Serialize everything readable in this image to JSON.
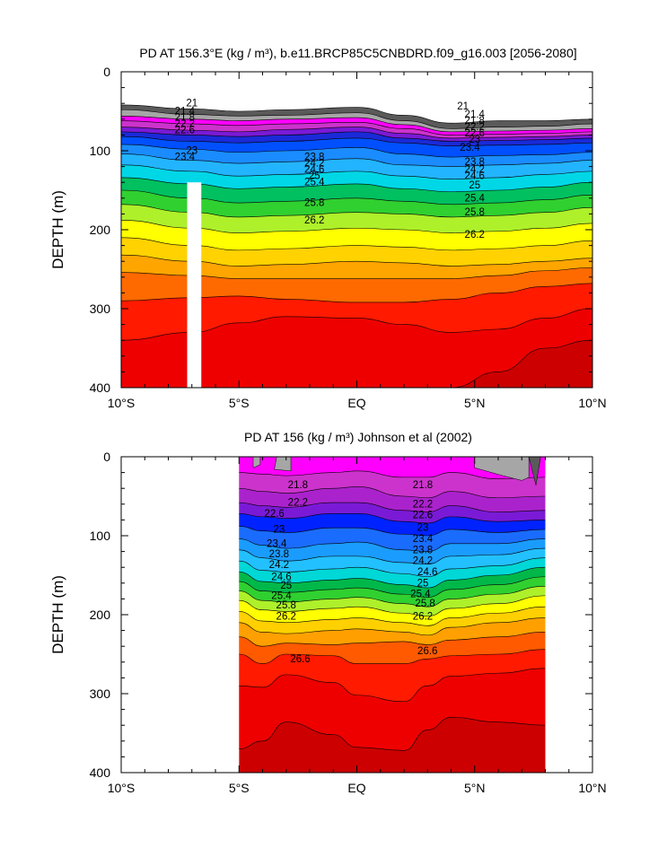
{
  "chart_data": [
    {
      "type": "contour",
      "title": "PD AT 156.3°E (kg / m³), b.e11.BRCP85C5CNBDRD.f09_g16.003 [2056-2080]",
      "ylabel": "DEPTH (m)",
      "xlabel": "",
      "x_range": [
        -10,
        10
      ],
      "y_range": [
        0,
        400
      ],
      "y_inverted": true,
      "x_ticks": [
        {
          "value": -10,
          "label": "10°S"
        },
        {
          "value": -5,
          "label": "5°S"
        },
        {
          "value": 0,
          "label": "EQ"
        },
        {
          "value": 5,
          "label": "5°N"
        },
        {
          "value": 10,
          "label": "10°N"
        }
      ],
      "y_ticks": [
        {
          "value": 0,
          "label": "0"
        },
        {
          "value": 100,
          "label": "100"
        },
        {
          "value": 200,
          "label": "200"
        },
        {
          "value": 300,
          "label": "300"
        },
        {
          "value": 400,
          "label": "400"
        }
      ],
      "data_extent_x": [
        -10,
        10
      ],
      "contour_labels": [
        "21",
        "21.4",
        "21.8",
        "22.2",
        "22.6",
        "23",
        "23.4",
        "23.8",
        "24.2",
        "24.6",
        "25",
        "25.4",
        "25.8",
        "26.2"
      ],
      "profile_x": [
        -10,
        -7,
        -5,
        -3,
        0,
        2,
        4,
        6,
        8,
        10
      ],
      "isopycnals": [
        {
          "level": 20.8,
          "depth": [
            42,
            47,
            50,
            48,
            45,
            55,
            65,
            62,
            62,
            60
          ],
          "color": "#5a5a5a"
        },
        {
          "level": 21.0,
          "depth": [
            48,
            54,
            56,
            55,
            52,
            62,
            72,
            70,
            69,
            66
          ],
          "color": "#a6a6a6"
        },
        {
          "level": 21.4,
          "depth": [
            56,
            60,
            62,
            60,
            58,
            67,
            76,
            75,
            74,
            72
          ],
          "color": "#ff00ff"
        },
        {
          "level": 21.8,
          "depth": [
            62,
            66,
            68,
            66,
            64,
            72,
            80,
            79,
            78,
            76
          ],
          "color": "#cc33cc"
        },
        {
          "level": 22.2,
          "depth": [
            70,
            74,
            76,
            73,
            70,
            78,
            84,
            83,
            82,
            80
          ],
          "color": "#7a1ad6"
        },
        {
          "level": 22.6,
          "depth": [
            76,
            80,
            82,
            80,
            76,
            84,
            88,
            87,
            86,
            84
          ],
          "color": "#1a2ad8"
        },
        {
          "level": 23.0,
          "depth": [
            82,
            88,
            90,
            88,
            84,
            90,
            94,
            93,
            92,
            90
          ],
          "color": "#0050ff"
        },
        {
          "level": 23.4,
          "depth": [
            92,
            98,
            102,
            100,
            96,
            104,
            108,
            106,
            105,
            102
          ],
          "color": "#1a8cff"
        },
        {
          "level": 23.8,
          "depth": [
            104,
            112,
            116,
            114,
            110,
            118,
            120,
            118,
            116,
            112
          ],
          "color": "#23b4ff"
        },
        {
          "level": 24.2,
          "depth": [
            118,
            126,
            132,
            130,
            126,
            132,
            136,
            134,
            130,
            126
          ],
          "color": "#00d7e6"
        },
        {
          "level": 24.6,
          "depth": [
            134,
            142,
            148,
            146,
            142,
            148,
            152,
            150,
            146,
            140
          ],
          "color": "#00c060"
        },
        {
          "level": 25.0,
          "depth": [
            150,
            160,
            166,
            164,
            160,
            164,
            168,
            166,
            162,
            156
          ],
          "color": "#30d030"
        },
        {
          "level": 25.4,
          "depth": [
            168,
            178,
            184,
            182,
            178,
            180,
            184,
            182,
            178,
            172
          ],
          "color": "#aef02a"
        },
        {
          "level": 25.8,
          "depth": [
            188,
            198,
            204,
            202,
            198,
            200,
            204,
            202,
            198,
            192
          ],
          "color": "#ffff00"
        },
        {
          "level": 26.0,
          "depth": [
            210,
            220,
            226,
            224,
            220,
            222,
            226,
            224,
            220,
            214
          ],
          "color": "#ffd200"
        },
        {
          "level": 26.2,
          "depth": [
            232,
            240,
            246,
            244,
            240,
            242,
            246,
            244,
            240,
            236
          ],
          "color": "#ffa500"
        },
        {
          "level": 26.4,
          "depth": [
            254,
            258,
            262,
            262,
            262,
            262,
            262,
            258,
            252,
            248
          ],
          "color": "#ff6a00"
        },
        {
          "level": 26.6,
          "depth": [
            290,
            286,
            284,
            288,
            292,
            292,
            288,
            280,
            272,
            268
          ],
          "color": "#ff1a00"
        },
        {
          "level": 26.8,
          "depth": [
            340,
            330,
            318,
            310,
            312,
            320,
            330,
            326,
            312,
            300
          ],
          "color": "#ee0000"
        },
        {
          "level": 27.0,
          "depth": [
            400,
            400,
            400,
            400,
            400,
            400,
            400,
            380,
            350,
            340
          ],
          "color": "#cc0000"
        }
      ],
      "masked_columns": [
        {
          "x_from": -7.2,
          "x_to": -6.6,
          "depth_from": 140,
          "depth_to": 400
        }
      ]
    },
    {
      "type": "contour",
      "title": "PD AT 156 (kg / m³) Johnson et al (2002)",
      "ylabel": "DEPTH (m)",
      "xlabel": "",
      "x_range": [
        -10,
        10
      ],
      "y_range": [
        0,
        400
      ],
      "y_inverted": true,
      "x_ticks": [
        {
          "value": -10,
          "label": "10°S"
        },
        {
          "value": -5,
          "label": "5°S"
        },
        {
          "value": 0,
          "label": "EQ"
        },
        {
          "value": 5,
          "label": "5°N"
        },
        {
          "value": 10,
          "label": "10°N"
        }
      ],
      "y_ticks": [
        {
          "value": 0,
          "label": "0"
        },
        {
          "value": 100,
          "label": "100"
        },
        {
          "value": 200,
          "label": "200"
        },
        {
          "value": 300,
          "label": "300"
        },
        {
          "value": 400,
          "label": "400"
        }
      ],
      "data_extent_x": [
        -5,
        8
      ],
      "contour_labels": [
        "21.8",
        "22.2",
        "22.6",
        "23",
        "23.4",
        "23.8",
        "24.2",
        "24.6",
        "25",
        "25.4",
        "25.8",
        "26.2",
        "26.6"
      ],
      "profile_x": [
        -5,
        -4,
        -3,
        -1,
        0,
        2,
        3,
        4,
        6,
        8
      ],
      "isopycnals": [
        {
          "level": 21.0,
          "depth": [
            0,
            0,
            0,
            0,
            0,
            0,
            0,
            0,
            0,
            0
          ],
          "color": "#ff00ff"
        },
        {
          "level": 21.4,
          "depth": [
            20,
            22,
            24,
            20,
            18,
            26,
            26,
            20,
            28,
            26
          ],
          "color": "#cc33cc"
        },
        {
          "level": 21.8,
          "depth": [
            40,
            44,
            46,
            40,
            38,
            50,
            52,
            44,
            52,
            50
          ],
          "color": "#aa22cc"
        },
        {
          "level": 22.2,
          "depth": [
            58,
            62,
            64,
            58,
            58,
            68,
            70,
            62,
            70,
            68
          ],
          "color": "#7a1ad6"
        },
        {
          "level": 22.6,
          "depth": [
            72,
            76,
            78,
            72,
            72,
            82,
            84,
            76,
            82,
            80
          ],
          "color": "#0022ff"
        },
        {
          "level": 23.0,
          "depth": [
            88,
            94,
            96,
            90,
            90,
            98,
            100,
            92,
            96,
            92
          ],
          "color": "#1a6cff"
        },
        {
          "level": 23.4,
          "depth": [
            104,
            112,
            116,
            110,
            108,
            118,
            120,
            110,
            110,
            104
          ],
          "color": "#1a9cff"
        },
        {
          "level": 23.8,
          "depth": [
            118,
            128,
            132,
            126,
            126,
            134,
            136,
            126,
            124,
            116
          ],
          "color": "#23c0ff"
        },
        {
          "level": 24.2,
          "depth": [
            132,
            144,
            146,
            142,
            140,
            148,
            152,
            142,
            138,
            128
          ],
          "color": "#00d7d7"
        },
        {
          "level": 24.6,
          "depth": [
            146,
            158,
            160,
            156,
            154,
            162,
            166,
            156,
            150,
            140
          ],
          "color": "#00b84a"
        },
        {
          "level": 25.0,
          "depth": [
            158,
            170,
            172,
            168,
            166,
            174,
            178,
            168,
            162,
            152
          ],
          "color": "#30d030"
        },
        {
          "level": 25.4,
          "depth": [
            170,
            182,
            184,
            180,
            178,
            186,
            190,
            180,
            174,
            164
          ],
          "color": "#aef02a"
        },
        {
          "level": 25.8,
          "depth": [
            182,
            194,
            196,
            192,
            190,
            198,
            202,
            192,
            186,
            176
          ],
          "color": "#ffff00"
        },
        {
          "level": 26.0,
          "depth": [
            196,
            208,
            210,
            206,
            204,
            210,
            214,
            204,
            198,
            190
          ],
          "color": "#ffd000"
        },
        {
          "level": 26.2,
          "depth": [
            210,
            222,
            224,
            220,
            218,
            222,
            226,
            216,
            210,
            204
          ],
          "color": "#ffa000"
        },
        {
          "level": 26.4,
          "depth": [
            228,
            240,
            236,
            238,
            236,
            234,
            238,
            232,
            228,
            222
          ],
          "color": "#ff5a00"
        },
        {
          "level": 26.6,
          "depth": [
            250,
            262,
            250,
            252,
            262,
            262,
            256,
            252,
            250,
            244
          ],
          "color": "#ff1a00"
        },
        {
          "level": 26.8,
          "depth": [
            290,
            292,
            276,
            286,
            302,
            310,
            290,
            278,
            274,
            268
          ],
          "color": "#ee0000"
        },
        {
          "level": 27.0,
          "depth": [
            370,
            360,
            336,
            352,
            368,
            372,
            346,
            330,
            336,
            340
          ],
          "color": "#cc0000"
        }
      ],
      "masked_columns": []
    }
  ]
}
